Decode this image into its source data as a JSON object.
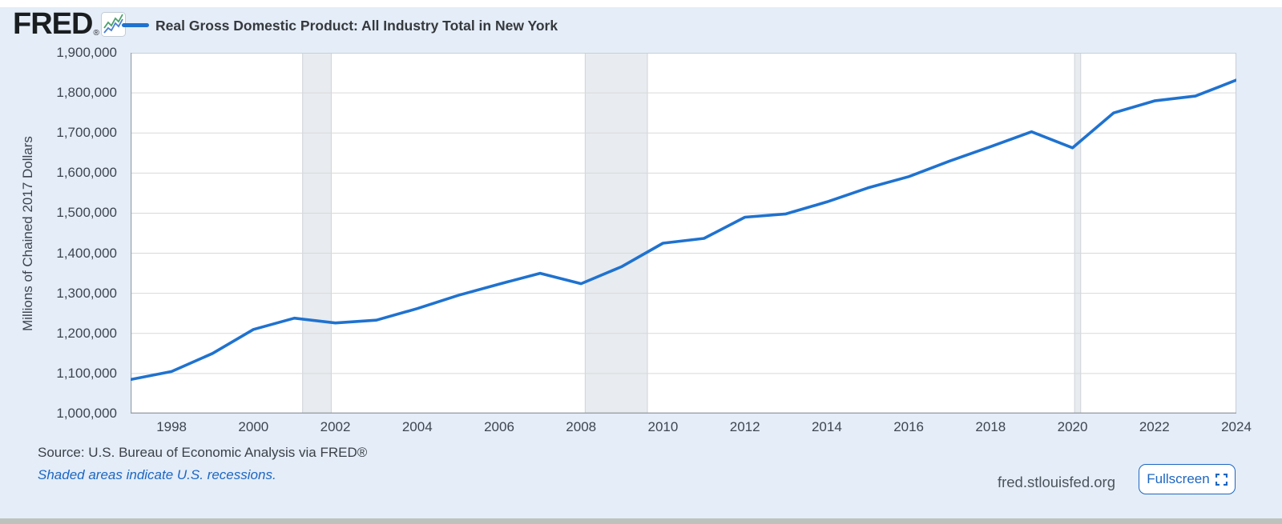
{
  "header": {
    "logo_text": "FRED",
    "registered_mark": "®",
    "series_title": "Real Gross Domestic Product: All Industry Total in New York"
  },
  "chart_data": {
    "type": "line",
    "title": "Real Gross Domestic Product: All Industry Total in New York",
    "ylabel": "Millions of Chained 2017 Dollars",
    "xlabel": "",
    "ylim": [
      1000000,
      1900000
    ],
    "ytick_step": 100000,
    "ytick_labels": [
      "1,900,000",
      "1,800,000",
      "1,700,000",
      "1,600,000",
      "1,500,000",
      "1,400,000",
      "1,300,000",
      "1,200,000",
      "1,100,000",
      "1,000,000"
    ],
    "xlim": [
      1997,
      2024
    ],
    "xticks": [
      1998,
      2000,
      2002,
      2004,
      2006,
      2008,
      2010,
      2012,
      2014,
      2016,
      2018,
      2020,
      2022,
      2024
    ],
    "xtick_labels": [
      "1998",
      "2000",
      "2002",
      "2004",
      "2006",
      "2008",
      "2010",
      "2012",
      "2014",
      "2016",
      "2018",
      "2020",
      "2022",
      "2024"
    ],
    "x": [
      1997,
      1998,
      1999,
      2000,
      2001,
      2002,
      2003,
      2004,
      2005,
      2006,
      2007,
      2008,
      2009,
      2010,
      2011,
      2012,
      2013,
      2014,
      2015,
      2016,
      2017,
      2018,
      2019,
      2020,
      2021,
      2022,
      2023,
      2024
    ],
    "values": [
      1085000,
      1105000,
      1150000,
      1210000,
      1238000,
      1226000,
      1233000,
      1262000,
      1295000,
      1323000,
      1350000,
      1324000,
      1367000,
      1425000,
      1437000,
      1490000,
      1498000,
      1528000,
      1563000,
      1591000,
      1630000,
      1666000,
      1703000,
      1663000,
      1750000,
      1780000,
      1792000,
      1832000
    ],
    "recessions": [
      {
        "start": 2001.2,
        "end": 2001.9
      },
      {
        "start": 2008.1,
        "end": 2009.62
      },
      {
        "start": 2020.05,
        "end": 2020.2
      }
    ],
    "grid": true,
    "legend_position": "top-left"
  },
  "footer": {
    "source": "Source: U.S. Bureau of Economic Analysis via FRED®",
    "recession_note": "Shaded areas indicate U.S. recessions.",
    "site": "fred.stlouisfed.org",
    "fullscreen_label": "Fullscreen"
  },
  "colors": {
    "line": "#1f72cf",
    "background": "#e4edf8",
    "recession_band": "#e8ebef",
    "recession_edge": "#cfd3d9",
    "gridline": "#d9d9d9",
    "axis_line": "#9aa0a7",
    "plot_border": "#cbced3",
    "link_blue": "#1d66c2"
  }
}
